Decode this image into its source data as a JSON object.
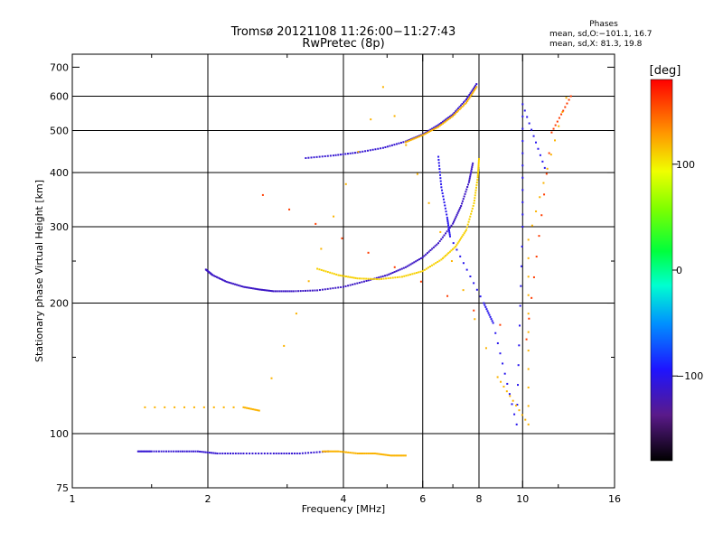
{
  "header": {
    "title_line1": "Tromsø 20121108 11:26:00−11:27:43",
    "title_line2": "RwPretec (8p)"
  },
  "phases_box": {
    "heading": "Phases",
    "line_o": "mean, sd,O:−101.1, 16.7",
    "line_x": "mean, sd,X:  81.3, 19.8"
  },
  "colorbar": {
    "unit": "[deg]",
    "range": [
      -180,
      180
    ],
    "ticks": [
      {
        "v": 100,
        "t": "100"
      },
      {
        "v": 0,
        "t": "0"
      },
      {
        "v": -100,
        "t": "−100"
      }
    ]
  },
  "chart_data": {
    "type": "scatter",
    "xlabel": "Frequency [MHz]",
    "ylabel": "Stationary phase Virtual Height [km]",
    "xscale": "log",
    "yscale": "log",
    "xlim": [
      1,
      16
    ],
    "ylim": [
      75,
      750
    ],
    "x_ticks": [
      {
        "v": 1,
        "t": "1"
      },
      {
        "v": 2,
        "t": "2"
      },
      {
        "v": 4,
        "t": "4"
      },
      {
        "v": 6,
        "t": "6"
      },
      {
        "v": 8,
        "t": "8"
      },
      {
        "v": 10,
        "t": "10"
      },
      {
        "v": 16,
        "t": "16"
      }
    ],
    "x_minor_ticks": [
      1.5,
      3,
      5,
      7,
      12
    ],
    "y_ticks": [
      {
        "v": 75,
        "t": "75"
      },
      {
        "v": 100,
        "t": "100"
      },
      {
        "v": 200,
        "t": "200"
      },
      {
        "v": 300,
        "t": "300"
      },
      {
        "v": 400,
        "t": "400"
      },
      {
        "v": 500,
        "t": "500"
      },
      {
        "v": 600,
        "t": "600"
      },
      {
        "v": 700,
        "t": "700"
      }
    ],
    "y_minor_ticks": [
      150,
      250
    ],
    "grid_x": [
      2,
      4,
      6,
      8,
      10
    ],
    "grid_y": [
      100,
      200,
      300,
      400,
      500,
      600
    ],
    "series": [
      {
        "phase": -110,
        "points": [
          [
            1.4,
            91
          ],
          [
            1.5,
            91
          ],
          [
            1.7,
            91
          ],
          [
            1.9,
            91
          ],
          [
            2.1,
            90
          ],
          [
            2.4,
            90
          ],
          [
            2.8,
            90
          ],
          [
            3.2,
            90
          ],
          [
            3.7,
            91
          ]
        ]
      },
      {
        "phase": 120,
        "points": [
          [
            3.6,
            91
          ],
          [
            3.9,
            91
          ],
          [
            4.3,
            90
          ],
          [
            4.7,
            90
          ],
          [
            5.1,
            89
          ],
          [
            5.5,
            89
          ]
        ]
      },
      {
        "phase": -115,
        "points": [
          [
            1.98,
            239
          ],
          [
            2.05,
            232
          ],
          [
            2.2,
            224
          ],
          [
            2.4,
            218
          ],
          [
            2.6,
            215
          ],
          [
            2.8,
            213
          ],
          [
            3.1,
            213
          ],
          [
            3.5,
            214
          ],
          [
            4.0,
            218
          ],
          [
            4.5,
            225
          ],
          [
            5.0,
            232
          ],
          [
            5.5,
            242
          ],
          [
            6.0,
            255
          ],
          [
            6.5,
            275
          ],
          [
            7.0,
            305
          ],
          [
            7.3,
            335
          ],
          [
            7.6,
            380
          ],
          [
            7.75,
            420
          ]
        ]
      },
      {
        "phase": 110,
        "points": [
          [
            3.5,
            240
          ],
          [
            3.9,
            232
          ],
          [
            4.3,
            228
          ],
          [
            4.8,
            227
          ],
          [
            5.4,
            230
          ],
          [
            6.0,
            237
          ],
          [
            6.6,
            252
          ],
          [
            7.1,
            270
          ],
          [
            7.5,
            295
          ],
          [
            7.8,
            340
          ],
          [
            7.95,
            390
          ],
          [
            8.0,
            430
          ]
        ]
      },
      {
        "phase": -110,
        "points": [
          [
            3.3,
            432
          ],
          [
            3.8,
            438
          ],
          [
            4.3,
            445
          ],
          [
            4.9,
            456
          ],
          [
            5.5,
            472
          ],
          [
            6.0,
            490
          ],
          [
            6.5,
            515
          ],
          [
            7.0,
            545
          ],
          [
            7.5,
            590
          ],
          [
            7.9,
            640
          ]
        ]
      },
      {
        "phase": 120,
        "points": [
          [
            5.5,
            470
          ],
          [
            6.0,
            488
          ],
          [
            6.5,
            510
          ],
          [
            7.0,
            540
          ],
          [
            7.5,
            580
          ],
          [
            7.9,
            630
          ]
        ]
      },
      {
        "phase": -100,
        "points": [
          [
            6.5,
            435
          ],
          [
            6.6,
            370
          ],
          [
            6.8,
            315
          ],
          [
            6.9,
            285
          ],
          [
            8.2,
            200
          ],
          [
            8.6,
            180
          ],
          [
            9.7,
            105
          ],
          [
            10,
            300
          ],
          [
            10,
            575
          ],
          [
            11.2,
            410
          ]
        ]
      },
      {
        "phase": 120,
        "points": [
          [
            1.45,
            115
          ],
          [
            2.4,
            115
          ],
          [
            2.6,
            113
          ],
          [
            4.9,
            630
          ],
          [
            8.8,
            135
          ],
          [
            10.3,
            105
          ],
          [
            10.3,
            280
          ],
          [
            12.5,
            595
          ]
        ]
      },
      {
        "phase": 160,
        "points": [
          [
            2.65,
            355
          ],
          [
            10.2,
            165
          ],
          [
            11.6,
            495
          ],
          [
            12.8,
            600
          ]
        ]
      }
    ]
  }
}
